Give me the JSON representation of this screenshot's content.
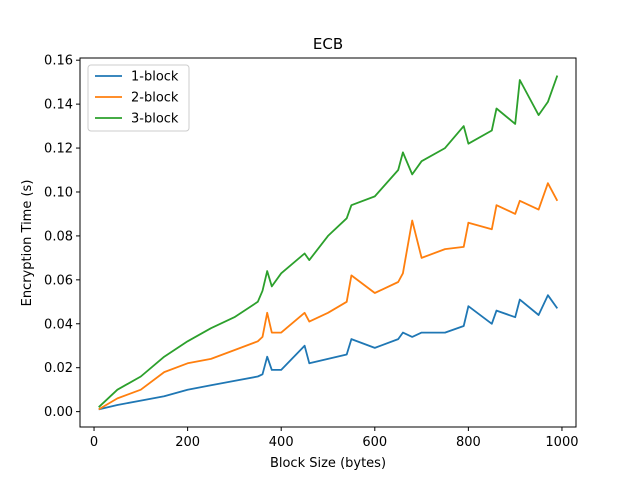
{
  "chart_data": {
    "type": "line",
    "title": "ECB",
    "xlabel": "Block Size (bytes)",
    "ylabel": "Encryption Time (s)",
    "xlim": [
      -30,
      1030
    ],
    "ylim": [
      -0.007,
      0.161
    ],
    "xticks": [
      0,
      200,
      400,
      600,
      800,
      1000
    ],
    "xtick_labels": [
      "0",
      "200",
      "400",
      "600",
      "800",
      "1000"
    ],
    "yticks": [
      0.0,
      0.02,
      0.04,
      0.06,
      0.08,
      0.1,
      0.12,
      0.14,
      0.16
    ],
    "ytick_labels": [
      "0.00",
      "0.02",
      "0.04",
      "0.06",
      "0.08",
      "0.10",
      "0.12",
      "0.14",
      "0.16"
    ],
    "grid": false,
    "legend_position": "upper-left",
    "x": [
      10,
      50,
      100,
      150,
      200,
      250,
      300,
      350,
      360,
      370,
      380,
      400,
      450,
      460,
      500,
      540,
      550,
      600,
      650,
      660,
      680,
      700,
      750,
      790,
      800,
      850,
      860,
      900,
      910,
      950,
      970,
      990
    ],
    "series": [
      {
        "name": "1-block",
        "color": "#1f77b4",
        "values": [
          0.001,
          0.003,
          0.005,
          0.007,
          0.01,
          0.012,
          0.014,
          0.016,
          0.017,
          0.025,
          0.019,
          0.019,
          0.03,
          0.022,
          0.024,
          0.026,
          0.033,
          0.029,
          0.033,
          0.036,
          0.034,
          0.036,
          0.036,
          0.039,
          0.048,
          0.04,
          0.046,
          0.043,
          0.051,
          0.044,
          0.053,
          0.047
        ]
      },
      {
        "name": "2-block",
        "color": "#ff7f0e",
        "values": [
          0.001,
          0.006,
          0.01,
          0.018,
          0.022,
          0.024,
          0.028,
          0.032,
          0.034,
          0.045,
          0.036,
          0.036,
          0.045,
          0.041,
          0.045,
          0.05,
          0.062,
          0.054,
          0.059,
          0.063,
          0.087,
          0.07,
          0.074,
          0.075,
          0.086,
          0.083,
          0.094,
          0.09,
          0.096,
          0.092,
          0.104,
          0.096
        ]
      },
      {
        "name": "3-block",
        "color": "#2ca02c",
        "values": [
          0.002,
          0.01,
          0.016,
          0.025,
          0.032,
          0.038,
          0.043,
          0.05,
          0.055,
          0.064,
          0.057,
          0.063,
          0.072,
          0.069,
          0.08,
          0.088,
          0.094,
          0.098,
          0.11,
          0.118,
          0.108,
          0.114,
          0.12,
          0.13,
          0.122,
          0.128,
          0.138,
          0.131,
          0.151,
          0.135,
          0.141,
          0.153
        ]
      }
    ]
  }
}
